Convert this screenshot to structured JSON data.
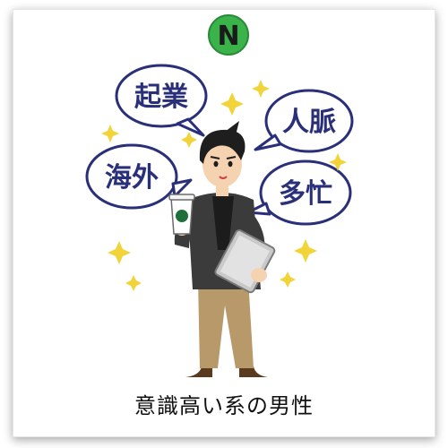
{
  "logo": {
    "letter": "N",
    "color": "#39b34a"
  },
  "bubbles": [
    {
      "text": "起業"
    },
    {
      "text": "人脈"
    },
    {
      "text": "海外"
    },
    {
      "text": "多忙"
    }
  ],
  "caption": "意識高い系の男性",
  "colors": {
    "bubble_text": "#2a2f7a",
    "sparkle": "#f2d43a",
    "jacket": "#3b3b3b",
    "pants": "#b8996a"
  }
}
